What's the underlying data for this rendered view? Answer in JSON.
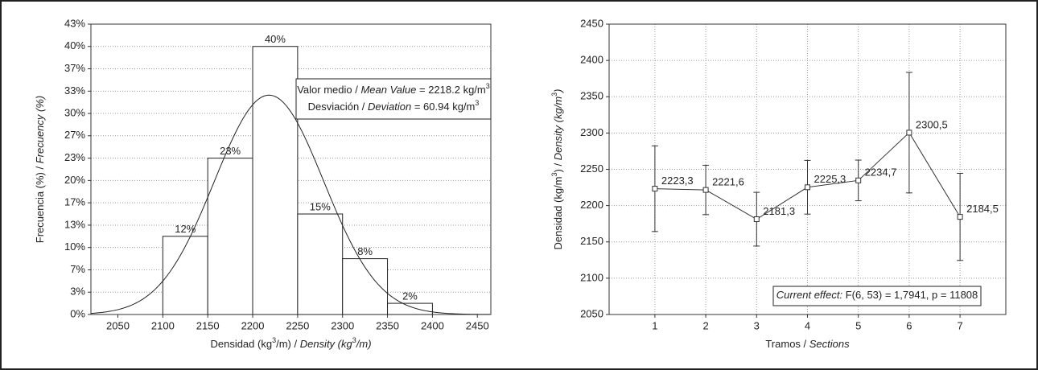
{
  "chart_data": [
    {
      "type": "histogram",
      "x_label": [
        {
          "text": "Densidad (kg"
        },
        {
          "text": "3",
          "style": "sup"
        },
        {
          "text": "/m) / "
        },
        {
          "text": "Density (kg",
          "style": "italic"
        },
        {
          "text": "3",
          "style": "sup"
        },
        {
          "text": "/m)",
          "style": "italic"
        }
      ],
      "y_label": [
        {
          "text": "Frecuencia (%) / "
        },
        {
          "text": "Frecuency (%)",
          "style": "italic"
        }
      ],
      "bins": [
        2100,
        2150,
        2200,
        2250,
        2300,
        2350,
        2400
      ],
      "values": [
        11.67,
        23.33,
        40,
        15,
        8.33,
        1.67
      ],
      "value_labels": [
        "12%",
        "23%",
        "40%",
        "15%",
        "8%",
        "2%"
      ],
      "xlim": [
        2020,
        2465
      ],
      "xticks": [
        2050,
        2100,
        2150,
        2200,
        2250,
        2300,
        2350,
        2400,
        2450
      ],
      "ylim": [
        0,
        43.33
      ],
      "yticks": [
        {
          "value": 0,
          "label": "0%"
        },
        {
          "value": 3.33,
          "label": "3%"
        },
        {
          "value": 6.67,
          "label": "7%"
        },
        {
          "value": 10,
          "label": "10%"
        },
        {
          "value": 13.33,
          "label": "13%"
        },
        {
          "value": 16.67,
          "label": "17%"
        },
        {
          "value": 20,
          "label": "20%"
        },
        {
          "value": 23.33,
          "label": "23%"
        },
        {
          "value": 26.67,
          "label": "27%"
        },
        {
          "value": 30,
          "label": "30%"
        },
        {
          "value": 33.33,
          "label": "33%"
        },
        {
          "value": 36.67,
          "label": "37%"
        },
        {
          "value": 40,
          "label": "40%"
        },
        {
          "value": 43.33,
          "label": "43%"
        }
      ],
      "grid": "y",
      "color": "#ffffff",
      "mean_line": {
        "label": "Valor medio / ",
        "label_en": "Mean Value",
        "eq": " = ",
        "value": 2218.2,
        "unit": " kg/m",
        "unit_sup": "3"
      },
      "sd_line": {
        "label": "Desviación / ",
        "label_en": "Deviation",
        "eq": " = ",
        "value": 60.94,
        "unit": " kg/m",
        "unit_sup": "3"
      }
    },
    {
      "type": "errorline",
      "x_label": [
        {
          "text": "Tramos / "
        },
        {
          "text": "Sections",
          "style": "italic"
        }
      ],
      "y_label": [
        {
          "text": "Densidad (kg/m"
        },
        {
          "text": "3",
          "style": "sup"
        },
        {
          "text": ") / "
        },
        {
          "text": "Density (kg/m",
          "style": "italic"
        },
        {
          "text": "3",
          "style": "sup"
        },
        {
          "text": ")",
          "style": "italic"
        }
      ],
      "x": [
        1,
        2,
        3,
        4,
        5,
        6,
        7
      ],
      "values": [
        2223.3,
        2221.6,
        2181.3,
        2225.3,
        2234.7,
        2300.5,
        2184.5
      ],
      "value_labels": [
        "2223,3",
        "2221,6",
        "2181,3",
        "2225,3",
        "2234,7",
        "2300,5",
        "2184,5"
      ],
      "errors": [
        59,
        34,
        37,
        37,
        28,
        83,
        60
      ],
      "xlim": [
        0.1,
        7.9
      ],
      "xticks": [
        1,
        2,
        3,
        4,
        5,
        6,
        7
      ],
      "ylim": [
        2050,
        2450
      ],
      "yticks": [
        2050,
        2100,
        2150,
        2200,
        2250,
        2300,
        2350,
        2400,
        2450
      ],
      "grid": "both",
      "color": "#333333",
      "annotation": [
        {
          "text": "Current effect:",
          "style": "italic"
        },
        {
          "text": " F(6, 53) = 1,7941, p = 11808"
        }
      ]
    }
  ]
}
